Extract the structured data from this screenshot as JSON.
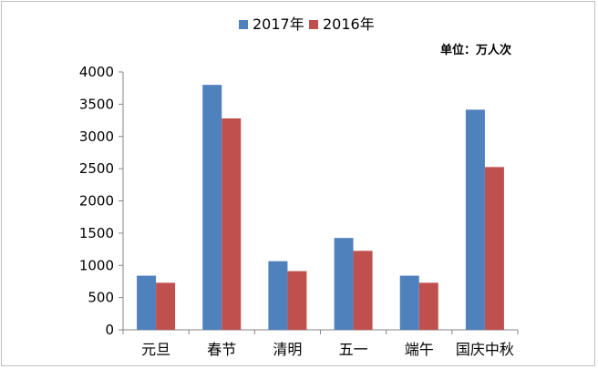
{
  "chart_data": {
    "type": "bar",
    "unit_label": "单位：万人次",
    "categories": [
      "元旦",
      "春节",
      "清明",
      "五一",
      "端午",
      "国庆中秋"
    ],
    "series": [
      {
        "name": "2017年",
        "color": "#4f81bd",
        "values": [
          840,
          3800,
          1065,
          1425,
          840,
          3415
        ]
      },
      {
        "name": "2016年",
        "color": "#c0504d",
        "values": [
          730,
          3280,
          910,
          1225,
          730,
          2525
        ]
      }
    ],
    "ylim": [
      0,
      4000
    ],
    "yticks": [
      0,
      500,
      1000,
      1500,
      2000,
      2500,
      3000,
      3500,
      4000
    ],
    "grid": false,
    "legend_position": "top"
  }
}
